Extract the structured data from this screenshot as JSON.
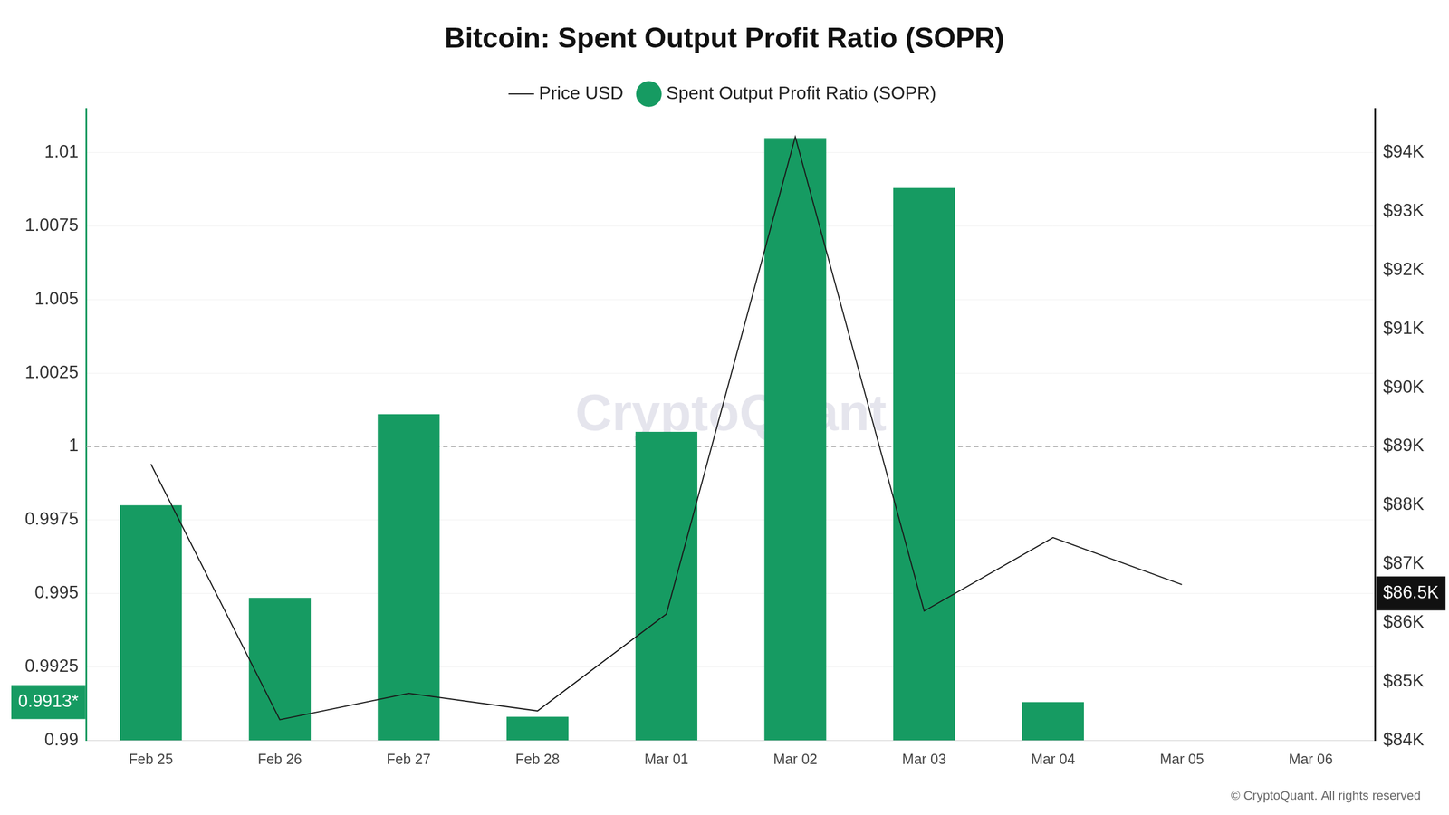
{
  "chart_data": {
    "type": "bar",
    "title": "Bitcoin: Spent Output Profit Ratio (SOPR)",
    "categories": [
      "Feb 25",
      "Feb 26",
      "Feb 27",
      "Feb 28",
      "Mar 01",
      "Mar 02",
      "Mar 03",
      "Mar 04",
      "Mar 05",
      "Mar 06"
    ],
    "series": [
      {
        "name": "Price USD",
        "type": "line",
        "axis": "y2",
        "color": "#1a1a1a",
        "values": [
          88700,
          84350,
          84800,
          84500,
          86150,
          94270,
          86200,
          87450,
          86650,
          null
        ]
      },
      {
        "name": "Spent Output Profit Ratio (SOPR)",
        "type": "bar",
        "axis": "y",
        "color": "#169b62",
        "values": [
          0.998,
          0.99485,
          1.0011,
          0.9908,
          1.0005,
          1.0105,
          1.0088,
          0.9913,
          null,
          null
        ]
      }
    ],
    "ylim": [
      0.99,
      1.0115
    ],
    "yticks": [
      0.99,
      0.9925,
      0.995,
      0.9975,
      1,
      1.0025,
      1.005,
      1.0075,
      1.01
    ],
    "y2lim": [
      84000,
      94750
    ],
    "y2ticks": [
      {
        "value": 84000,
        "label": "$84K"
      },
      {
        "value": 85000,
        "label": "$85K"
      },
      {
        "value": 86000,
        "label": "$86K"
      },
      {
        "value": 87000,
        "label": "$87K"
      },
      {
        "value": 88000,
        "label": "$88K"
      },
      {
        "value": 89000,
        "label": "$89K"
      },
      {
        "value": 90000,
        "label": "$90K"
      },
      {
        "value": 91000,
        "label": "$91K"
      },
      {
        "value": 92000,
        "label": "$92K"
      },
      {
        "value": 93000,
        "label": "$93K"
      },
      {
        "value": 94000,
        "label": "$94K"
      }
    ],
    "reference_lines": [
      {
        "value": 1,
        "axis": "y",
        "line_style": "dashed"
      }
    ],
    "annotations": [
      {
        "value": 0.9913,
        "label": "0.9913*",
        "axis": "y",
        "color": "#169b62"
      },
      {
        "value": 86500,
        "label": "$86.5K",
        "axis": "y2",
        "color": "#111111"
      }
    ],
    "watermark": "CryptoQuant",
    "source": "© CryptoQuant. All rights reserved",
    "grid": true,
    "legend": "top"
  }
}
